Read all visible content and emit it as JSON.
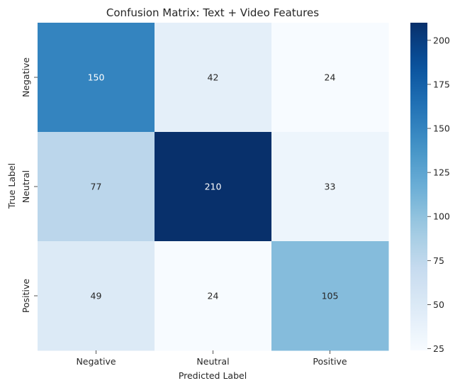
{
  "chart_data": {
    "type": "heatmap",
    "title": "Confusion Matrix: Text + Video Features",
    "xlabel": "Predicted Label",
    "ylabel": "True Label",
    "x_categories": [
      "Negative",
      "Neutral",
      "Positive"
    ],
    "y_categories": [
      "Negative",
      "Neutral",
      "Positive"
    ],
    "values": [
      [
        150,
        42,
        24
      ],
      [
        77,
        210,
        33
      ],
      [
        49,
        24,
        105
      ]
    ],
    "colormap": "Blues",
    "color_range": [
      24,
      210
    ],
    "colorbar_ticks": [
      25,
      50,
      75,
      100,
      125,
      150,
      175,
      200
    ],
    "colorbar_tick_labels": [
      "25",
      "50",
      "75",
      "100",
      "125",
      "150",
      "175",
      "200"
    ]
  }
}
